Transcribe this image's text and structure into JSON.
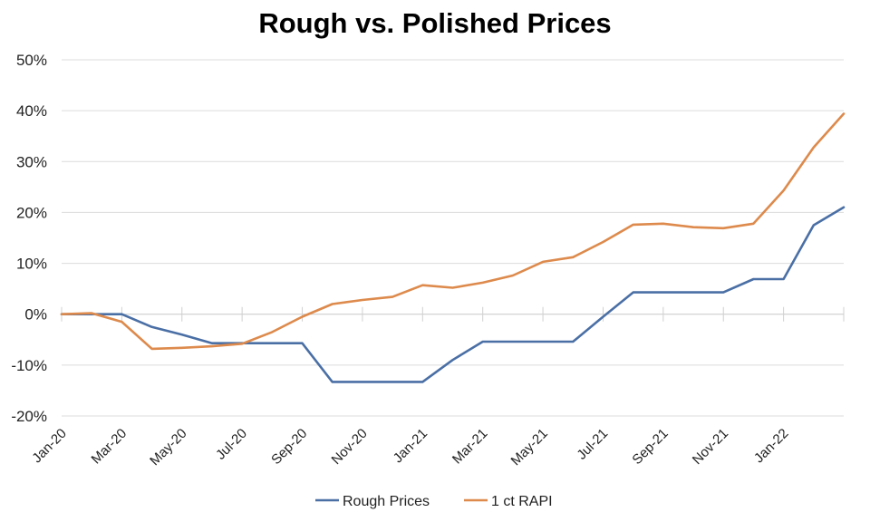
{
  "chart_data": {
    "type": "line",
    "title": "Rough vs. Polished Prices",
    "xlabel": "",
    "ylabel": "",
    "ylim": [
      -20,
      50
    ],
    "y_ticks": [
      "50%",
      "40%",
      "30%",
      "20%",
      "10%",
      "0%",
      "-10%",
      "-20%"
    ],
    "y_tick_values": [
      50,
      40,
      30,
      20,
      10,
      0,
      -10,
      -20
    ],
    "x": [
      "Jan-20",
      "Feb-20",
      "Mar-20",
      "Apr-20",
      "May-20",
      "Jun-20",
      "Jul-20",
      "Aug-20",
      "Sep-20",
      "Oct-20",
      "Nov-20",
      "Dec-20",
      "Jan-21",
      "Feb-21",
      "Mar-21",
      "Apr-21",
      "May-21",
      "Jun-21",
      "Jul-21",
      "Aug-21",
      "Sep-21",
      "Oct-21",
      "Nov-21",
      "Dec-21",
      "Jan-22",
      "Feb-22",
      "Mar-22"
    ],
    "x_tick_labels": [
      "Jan-20",
      "Mar-20",
      "May-20",
      "Jul-20",
      "Sep-20",
      "Nov-20",
      "Jan-21",
      "Mar-21",
      "May-21",
      "Jul-21",
      "Sep-21",
      "Nov-21",
      "Jan-22"
    ],
    "grid": true,
    "legend_position": "bottom",
    "series": [
      {
        "name": "Rough Prices",
        "color": "#4a6fa5",
        "values": [
          0,
          0,
          0,
          -2.5,
          -4,
          -5.7,
          -5.7,
          -5.7,
          -5.7,
          -13.3,
          -13.3,
          -13.3,
          -13.3,
          -9,
          -5.4,
          -5.4,
          -5.4,
          -5.4,
          -0.5,
          4.3,
          4.3,
          4.3,
          4.3,
          6.9,
          6.9,
          17.5,
          21
        ]
      },
      {
        "name": "1 ct RAPI",
        "color": "#dd8a4c",
        "values": [
          0,
          0.2,
          -1.5,
          -6.8,
          -6.6,
          -6.3,
          -5.8,
          -3.5,
          -0.5,
          2,
          2.8,
          3.4,
          5.7,
          5.2,
          6.2,
          7.6,
          10.3,
          11.2,
          14.2,
          17.6,
          17.8,
          17.1,
          16.9,
          17.8,
          24.3,
          32.8,
          39.4
        ]
      }
    ]
  }
}
